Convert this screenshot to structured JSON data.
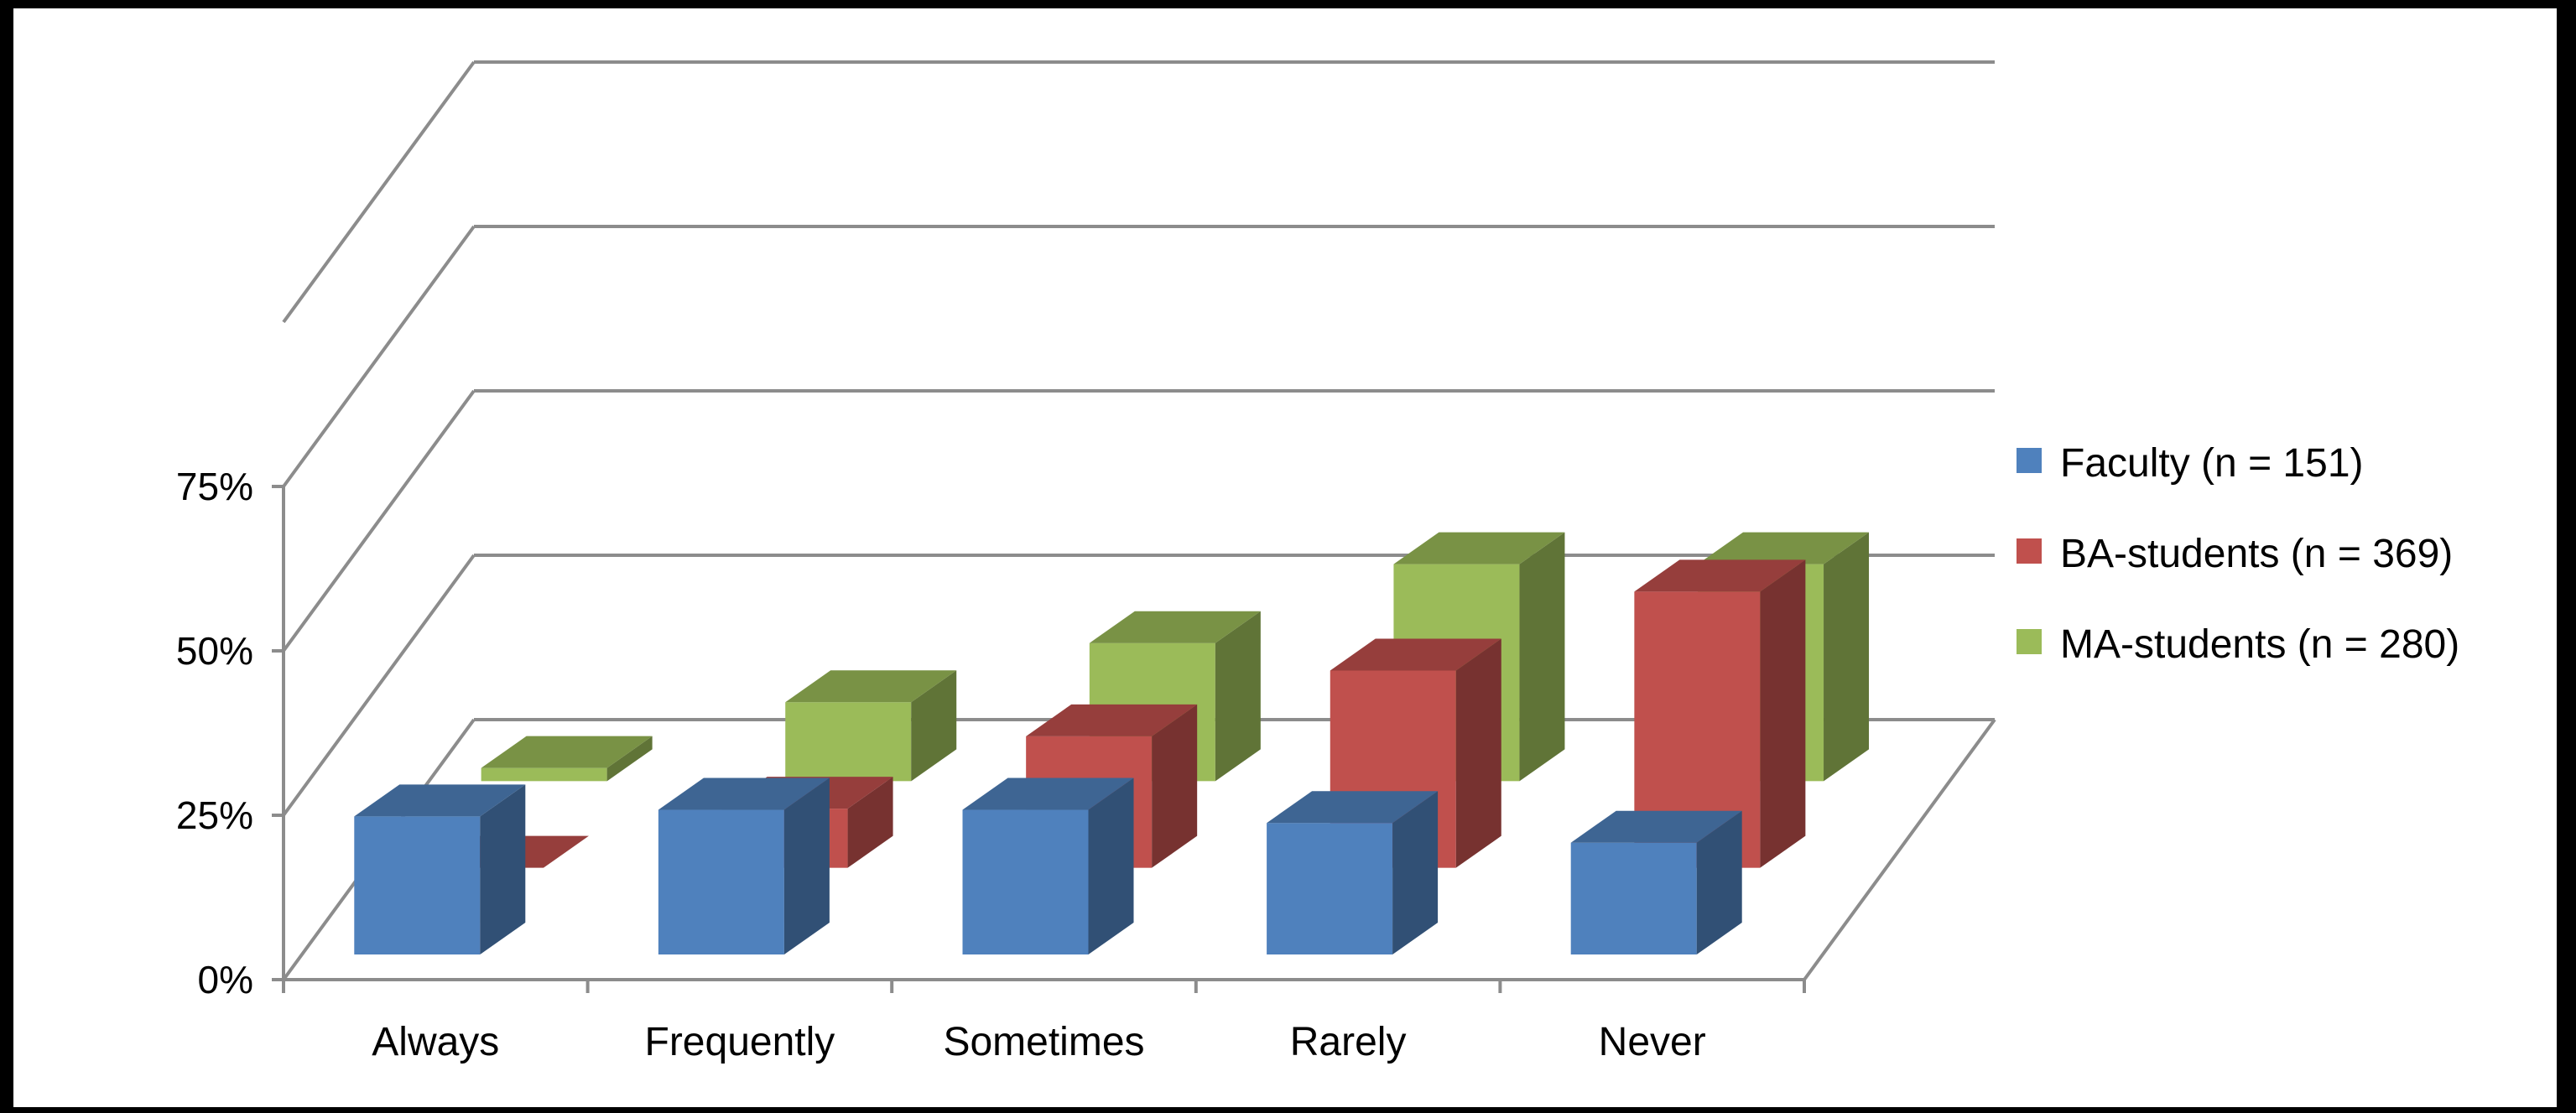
{
  "chart_data": {
    "type": "bar",
    "categories": [
      "Always",
      "Frequently",
      "Sometimes",
      "Rarely",
      "Never"
    ],
    "series": [
      {
        "name": "Faculty (n = 151)",
        "color": "#4F81BD",
        "values": [
          21,
          22,
          22,
          20,
          17
        ]
      },
      {
        "name": "BA-students (n = 369)",
        "color": "#C0504D",
        "values": [
          0,
          9,
          20,
          30,
          42
        ]
      },
      {
        "name": "MA-students (n = 280)",
        "color": "#9BBB59",
        "values": [
          2,
          12,
          21,
          33,
          33
        ]
      }
    ],
    "yticks": [
      "0%",
      "25%",
      "50%",
      "75%"
    ],
    "ylim": [
      0,
      100
    ],
    "grid": true,
    "legend_position": "right",
    "three_d": true
  }
}
